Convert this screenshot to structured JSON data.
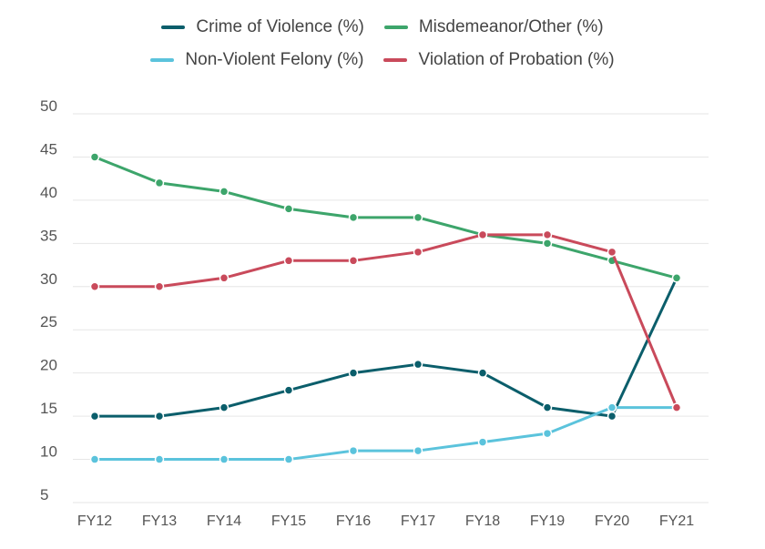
{
  "chart_data": {
    "type": "line",
    "title": "",
    "xlabel": "",
    "ylabel": "",
    "categories": [
      "FY12",
      "FY13",
      "FY14",
      "FY15",
      "FY16",
      "FY17",
      "FY18",
      "FY19",
      "FY20",
      "FY21"
    ],
    "ylim": [
      5,
      50
    ],
    "yticks": [
      5,
      10,
      15,
      20,
      25,
      30,
      35,
      40,
      45,
      50
    ],
    "grid": true,
    "legend_position": "top-center",
    "series": [
      {
        "name": "Crime of Violence (%)",
        "color": "#0b5e6b",
        "values": [
          15,
          15,
          16,
          18,
          20,
          21,
          20,
          16,
          15,
          31
        ]
      },
      {
        "name": "Misdemeanor/Other (%)",
        "color": "#3da56b",
        "values": [
          45,
          42,
          41,
          39,
          38,
          38,
          36,
          35,
          33,
          31
        ]
      },
      {
        "name": "Non-Violent Felony (%)",
        "color": "#5bc3dc",
        "values": [
          10,
          10,
          10,
          10,
          11,
          11,
          12,
          13,
          16,
          16
        ]
      },
      {
        "name": "Violation of Probation (%)",
        "color": "#c94a5b",
        "values": [
          30,
          30,
          31,
          33,
          33,
          34,
          36,
          36,
          34,
          16
        ]
      }
    ]
  }
}
